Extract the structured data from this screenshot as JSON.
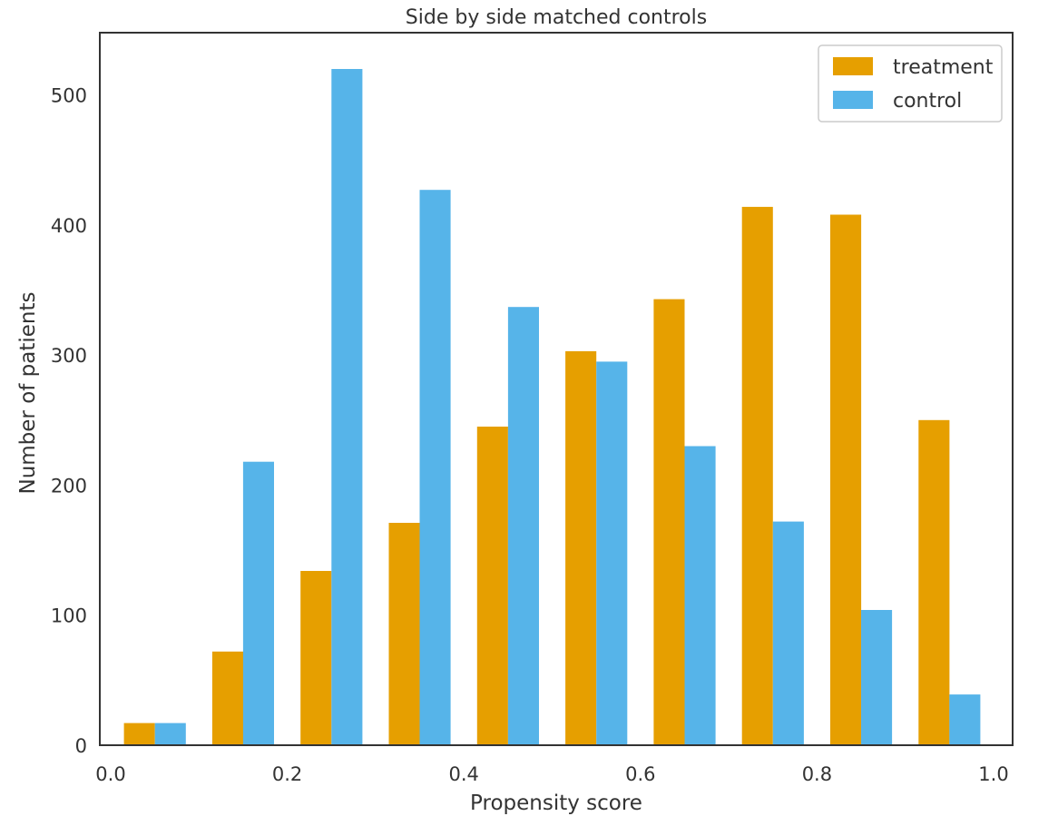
{
  "chart_data": {
    "type": "bar",
    "title": "Side by side matched controls",
    "xlabel": "Propensity score",
    "ylabel": "Number of patients",
    "xlim": [
      0.0,
      1.0
    ],
    "ylim": [
      0,
      545
    ],
    "xticks": [
      "0.0",
      "0.2",
      "0.4",
      "0.6",
      "0.8",
      "1.0"
    ],
    "yticks": [
      "0",
      "100",
      "200",
      "300",
      "400",
      "500"
    ],
    "grid": false,
    "legend_position": "top-right",
    "bins": [
      0.05,
      0.15,
      0.25,
      0.35,
      0.45,
      0.55,
      0.65,
      0.75,
      0.85,
      0.95
    ],
    "series": [
      {
        "name": "treatment",
        "color": "#e69f00",
        "values": [
          17,
          72,
          134,
          171,
          245,
          303,
          343,
          414,
          408,
          250
        ]
      },
      {
        "name": "control",
        "color": "#56b4e9",
        "values": [
          17,
          218,
          520,
          427,
          337,
          295,
          230,
          172,
          104,
          39
        ]
      }
    ]
  }
}
